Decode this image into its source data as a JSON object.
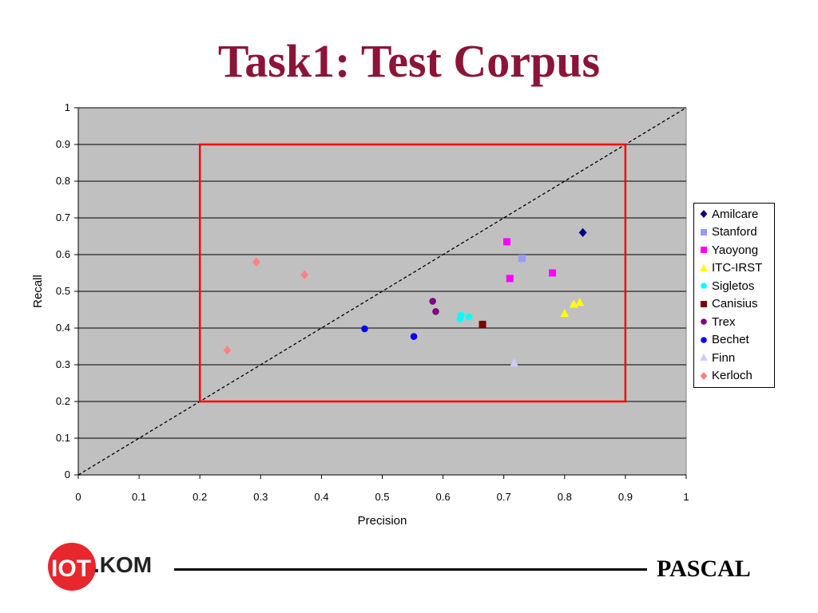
{
  "slide": {
    "title": "Task1: Test Corpus"
  },
  "chart_data": {
    "type": "scatter",
    "title": "",
    "xlabel": "Precision",
    "ylabel": "Recall",
    "xlim": [
      0,
      1
    ],
    "ylim": [
      0,
      1
    ],
    "x_ticks": [
      "0",
      "0.1",
      "0.2",
      "0.3",
      "0.4",
      "0.5",
      "0.6",
      "0.7",
      "0.8",
      "0.9",
      "1"
    ],
    "y_ticks": [
      "0",
      "0.1",
      "0.2",
      "0.3",
      "0.4",
      "0.5",
      "0.6",
      "0.7",
      "0.8",
      "0.9",
      "1"
    ],
    "grid": "horizontal",
    "plot_background": "#c0c0c0",
    "legend_position": "right",
    "reference_line": {
      "from": [
        0,
        0
      ],
      "to": [
        1,
        1
      ],
      "style": "dashed",
      "color": "#000000"
    },
    "highlight_box": {
      "x": [
        0.2,
        0.9
      ],
      "y": [
        0.2,
        0.9
      ],
      "color": "#ff0000"
    },
    "series": [
      {
        "name": "Amilcare",
        "marker": "diamond",
        "color": "#000080",
        "points": [
          [
            0.83,
            0.66
          ]
        ]
      },
      {
        "name": "Stanford",
        "marker": "square",
        "color": "#9999ff",
        "points": [
          [
            0.73,
            0.59
          ]
        ]
      },
      {
        "name": "Yaoyong",
        "marker": "square",
        "color": "#ff00ff",
        "points": [
          [
            0.705,
            0.635
          ],
          [
            0.71,
            0.535
          ],
          [
            0.78,
            0.55
          ]
        ]
      },
      {
        "name": "ITC-IRST",
        "marker": "triangle",
        "color": "#ffff00",
        "points": [
          [
            0.8,
            0.44
          ],
          [
            0.815,
            0.465
          ],
          [
            0.825,
            0.47
          ]
        ]
      },
      {
        "name": "Sigletos",
        "marker": "circle",
        "color": "#00ffff",
        "points": [
          [
            0.63,
            0.435
          ],
          [
            0.628,
            0.425
          ],
          [
            0.643,
            0.43
          ]
        ]
      },
      {
        "name": "Canisius",
        "marker": "square",
        "color": "#800000",
        "points": [
          [
            0.665,
            0.41
          ]
        ]
      },
      {
        "name": "Trex",
        "marker": "circle",
        "color": "#800080",
        "points": [
          [
            0.583,
            0.473
          ],
          [
            0.588,
            0.445
          ]
        ]
      },
      {
        "name": "Bechet",
        "marker": "circle",
        "color": "#0000ff",
        "points": [
          [
            0.471,
            0.398
          ],
          [
            0.552,
            0.377
          ]
        ]
      },
      {
        "name": "Finn",
        "marker": "triangle",
        "color": "#ccccff",
        "points": [
          [
            0.717,
            0.305
          ]
        ]
      },
      {
        "name": "Kerloch",
        "marker": "diamond",
        "color": "#ff8080",
        "points": [
          [
            0.245,
            0.34
          ],
          [
            0.293,
            0.58
          ],
          [
            0.372,
            0.545
          ]
        ]
      }
    ]
  },
  "footer": {
    "logo_text": ".KOM",
    "brand": "PASCAL",
    "logo_color": "#e8262d"
  }
}
